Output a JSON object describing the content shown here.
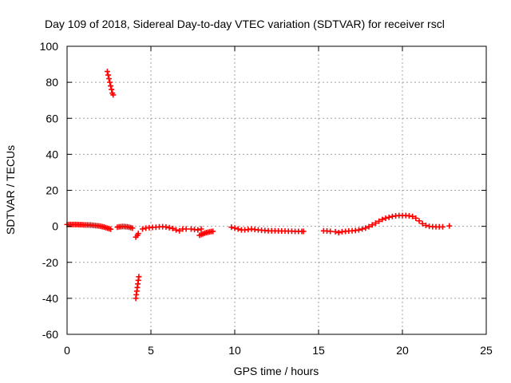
{
  "chart_data": {
    "type": "scatter",
    "title": "Day 109 of 2018, Sidereal Day-to-day VTEC variation (SDTVAR) for receiver rscl",
    "xlabel": "GPS time / hours",
    "ylabel": "SDTVAR / TECUs",
    "xlim": [
      0,
      25
    ],
    "ylim": [
      -60,
      100
    ],
    "xticks": [
      0,
      5,
      10,
      15,
      20,
      25
    ],
    "yticks": [
      -60,
      -40,
      -20,
      0,
      20,
      40,
      60,
      80,
      100
    ],
    "grid": true,
    "marker": "+",
    "color": "#ff0000",
    "series": [
      {
        "name": "SDTVAR",
        "x": [
          0.0,
          0.1,
          0.2,
          0.3,
          0.4,
          0.5,
          0.6,
          0.7,
          0.8,
          0.9,
          1.0,
          1.1,
          1.2,
          1.3,
          1.4,
          1.5,
          1.6,
          1.7,
          1.8,
          1.9,
          2.0,
          2.1,
          2.2,
          2.3,
          2.4,
          2.5,
          2.6,
          2.4,
          2.45,
          2.5,
          2.55,
          2.6,
          2.65,
          2.7,
          2.75,
          3.0,
          3.1,
          3.2,
          3.3,
          3.4,
          3.5,
          3.6,
          3.7,
          3.8,
          3.9,
          4.1,
          4.2,
          4.25,
          4.1,
          4.13,
          4.16,
          4.19,
          4.22,
          4.25,
          4.28,
          4.5,
          4.7,
          4.9,
          5.1,
          5.3,
          5.5,
          5.7,
          5.9,
          6.1,
          6.3,
          6.5,
          6.7,
          6.9,
          7.1,
          7.4,
          7.6,
          7.8,
          8.0,
          7.9,
          8.0,
          8.1,
          8.2,
          8.3,
          8.4,
          8.5,
          8.6,
          8.7,
          9.8,
          10.0,
          10.2,
          10.4,
          10.6,
          10.8,
          11.0,
          11.2,
          11.4,
          11.6,
          11.8,
          12.0,
          12.2,
          12.4,
          12.6,
          12.8,
          13.0,
          13.2,
          13.4,
          13.6,
          13.8,
          14.0,
          14.1,
          15.3,
          15.5,
          15.7,
          16.0,
          16.2,
          16.4,
          16.6,
          16.8,
          17.0,
          17.2,
          17.4,
          17.6,
          17.8,
          18.0,
          18.2,
          18.4,
          18.6,
          18.8,
          19.0,
          19.2,
          19.4,
          19.6,
          19.8,
          20.0,
          20.2,
          20.4,
          20.6,
          20.8,
          21.0,
          21.2,
          21.4,
          21.6,
          21.8,
          22.0,
          22.2,
          22.4,
          22.8
        ],
        "y": [
          1.0,
          1.0,
          1.0,
          1.0,
          1.0,
          1.0,
          1.0,
          0.9,
          0.9,
          0.9,
          0.8,
          0.8,
          0.8,
          0.7,
          0.7,
          0.6,
          0.5,
          0.4,
          0.3,
          0.2,
          0.0,
          -0.2,
          -0.4,
          -0.7,
          -1.0,
          -1.3,
          -1.6,
          86,
          84,
          82,
          80,
          78,
          76,
          74,
          73,
          -0.5,
          -0.3,
          -0.2,
          -0.1,
          -0.1,
          -0.2,
          -0.3,
          -0.5,
          -0.7,
          -1.0,
          -6.0,
          -5.0,
          -4.0,
          -40,
          -38,
          -36,
          -34,
          -32,
          -30,
          -28,
          -1.5,
          -1.0,
          -0.8,
          -0.6,
          -0.5,
          -0.3,
          -0.2,
          -0.4,
          -0.8,
          -1.2,
          -2.0,
          -2.5,
          -1.5,
          -1.5,
          -1.5,
          -1.8,
          -2.0,
          -1.5,
          -5.0,
          -4.6,
          -4.2,
          -3.8,
          -3.5,
          -3.3,
          -3.1,
          -2.9,
          -2.8,
          -0.5,
          -1.0,
          -1.5,
          -2.0,
          -2.0,
          -1.8,
          -1.5,
          -1.8,
          -2.0,
          -2.2,
          -2.3,
          -2.5,
          -2.5,
          -2.5,
          -2.6,
          -2.6,
          -2.6,
          -2.7,
          -2.7,
          -2.8,
          -2.8,
          -2.8,
          -2.8,
          -2.5,
          -2.6,
          -2.8,
          -3.0,
          -3.5,
          -3.0,
          -2.8,
          -2.6,
          -2.5,
          -2.3,
          -2.0,
          -1.5,
          -1.0,
          -0.2,
          0.8,
          1.8,
          2.8,
          3.8,
          4.5,
          5.0,
          5.5,
          5.8,
          6.0,
          6.0,
          6.0,
          5.8,
          5.5,
          4.5,
          3.0,
          1.5,
          0.5,
          0.0,
          -0.2,
          -0.3,
          -0.3,
          -0.3,
          0.2
        ]
      }
    ]
  }
}
